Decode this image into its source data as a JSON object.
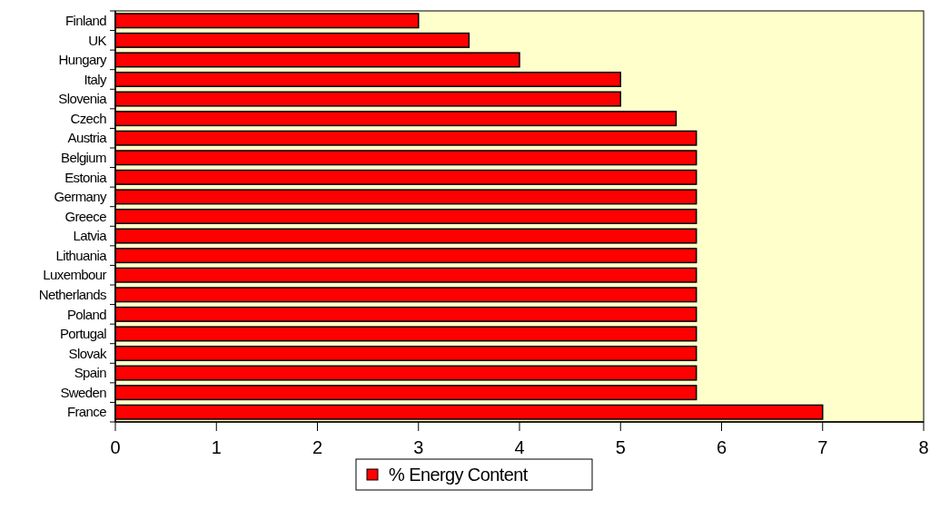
{
  "chart_data": {
    "type": "bar",
    "orientation": "horizontal",
    "categories": [
      "Finland",
      "UK",
      "Hungary",
      "Italy",
      "Slovenia",
      "Czech",
      "Austria",
      "Belgium",
      "Estonia",
      "Germany",
      "Greece",
      "Latvia",
      "Lithuania",
      "Luxembour",
      "Netherlands",
      "Poland",
      "Portugal",
      "Slovak",
      "Spain",
      "Sweden",
      "France"
    ],
    "series": [
      {
        "name": "% Energy Content",
        "color": "#ff0000",
        "values": [
          3,
          3.5,
          4,
          5,
          5,
          5.55,
          5.75,
          5.75,
          5.75,
          5.75,
          5.75,
          5.75,
          5.75,
          5.75,
          5.75,
          5.75,
          5.75,
          5.75,
          5.75,
          5.75,
          7
        ]
      }
    ],
    "xlim": [
      0,
      8
    ],
    "xticks": [
      0,
      1,
      2,
      3,
      4,
      5,
      6,
      7,
      8
    ],
    "grid": false,
    "legend": "bottom"
  }
}
